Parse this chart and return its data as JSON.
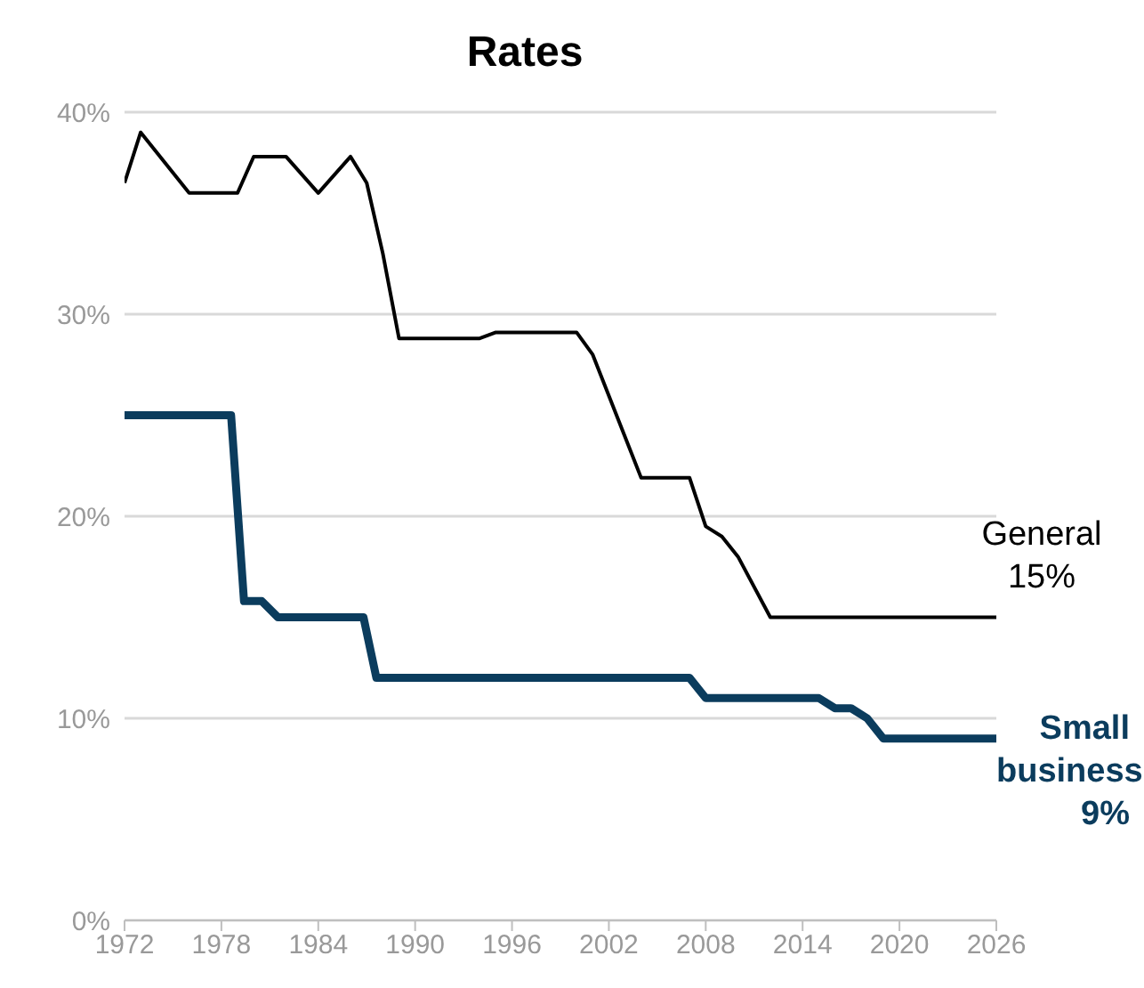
{
  "chart_data": {
    "type": "line",
    "title": "Rates",
    "xlim": [
      1972,
      2026
    ],
    "xticks": [
      1972,
      1978,
      1984,
      1990,
      1996,
      2002,
      2008,
      2014,
      2020,
      2026
    ],
    "ylim": [
      0,
      40
    ],
    "yticks": [
      {
        "value": 0,
        "label": "0%"
      },
      {
        "value": 10,
        "label": "10%"
      },
      {
        "value": 20,
        "label": "20%"
      },
      {
        "value": 30,
        "label": "30%"
      },
      {
        "value": 40,
        "label": "40%"
      }
    ],
    "grid": "y",
    "legend": false,
    "marker": "none",
    "line_style": "solid",
    "series": [
      {
        "name": "General",
        "color": "#000000",
        "x": [
          1972,
          1973,
          1976,
          1979,
          1980,
          1982,
          1984,
          1986,
          1987,
          1988,
          1989,
          1994,
          1995,
          2000,
          2001,
          2004,
          2007,
          2008,
          2009,
          2010,
          2012,
          2026
        ],
        "values": [
          36.5,
          39,
          36,
          36,
          37.8,
          37.8,
          36,
          37.8,
          36.5,
          33,
          28.8,
          28.8,
          29.1,
          29.1,
          28,
          21.9,
          21.9,
          19.5,
          19,
          18,
          15,
          15
        ]
      },
      {
        "name": "Small business",
        "color": "#0b3c5d",
        "x": [
          1972,
          1978.6,
          1979.4,
          1980.5,
          1981.5,
          1986.8,
          1987.6,
          2007,
          2008,
          2015,
          2016,
          2017,
          2018,
          2019,
          2026
        ],
        "values": [
          25,
          25,
          15.8,
          15.8,
          15,
          15,
          12,
          12,
          11,
          11,
          10.5,
          10.5,
          10,
          9,
          9
        ]
      }
    ],
    "annotations": [
      "15%",
      "9%"
    ]
  }
}
